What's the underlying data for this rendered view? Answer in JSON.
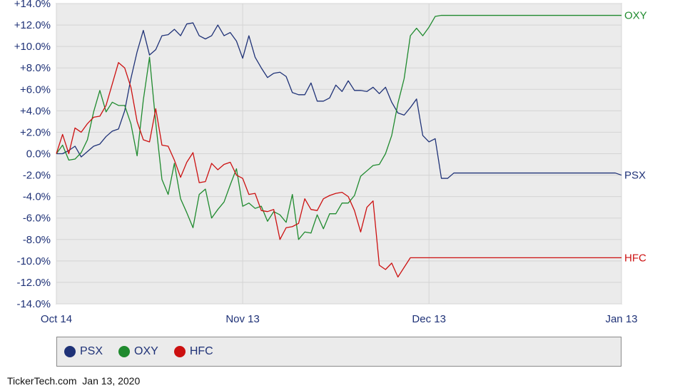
{
  "chart_data": {
    "type": "line",
    "xlabel": "",
    "ylabel": "",
    "ylim": [
      -14,
      14
    ],
    "y_ticks": [
      "+14.0%",
      "+12.0%",
      "+10.0%",
      "+8.0%",
      "+6.0%",
      "+4.0%",
      "+2.0%",
      "0.0%",
      "-2.0%",
      "-4.0%",
      "-6.0%",
      "-8.0%",
      "-10.0%",
      "-12.0%",
      "-14.0%"
    ],
    "y_tick_values": [
      14,
      12,
      10,
      8,
      6,
      4,
      2,
      0,
      -2,
      -4,
      -6,
      -8,
      -10,
      -12,
      -14
    ],
    "x_ticks": [
      "Oct 14",
      "Nov 13",
      "Dec 13",
      "Jan 13"
    ],
    "x_tick_days": [
      0,
      30,
      60,
      91
    ],
    "grid": true,
    "legend_position": "bottom",
    "series": [
      {
        "name": "PSX",
        "color": "#1f3277",
        "days": [
          0,
          1,
          2,
          3,
          4,
          5,
          6,
          7,
          8,
          9,
          10,
          11,
          12,
          13,
          14,
          15,
          16,
          17,
          18,
          19,
          20,
          21,
          22,
          23,
          24,
          25,
          26,
          27,
          28,
          29,
          30,
          31,
          32,
          33,
          34,
          35,
          36,
          37,
          38,
          39,
          40,
          41,
          42,
          43,
          44,
          45,
          46,
          47,
          48,
          49,
          50,
          51,
          52,
          53,
          54,
          55,
          56,
          57,
          58,
          59,
          60,
          61,
          62,
          63,
          64,
          65,
          66,
          67,
          68,
          69,
          70,
          71,
          72,
          73,
          74,
          75,
          76,
          77,
          78,
          79,
          80,
          81,
          82,
          83,
          84,
          85,
          86,
          87,
          88,
          89,
          90,
          91
        ],
        "values": [
          0.0,
          0.0,
          0.3,
          0.7,
          -0.3,
          0.2,
          0.7,
          0.9,
          1.6,
          2.1,
          2.3,
          4.0,
          7.0,
          9.5,
          11.5,
          9.2,
          9.7,
          11.0,
          11.1,
          11.6,
          11.0,
          12.1,
          12.2,
          11.0,
          10.7,
          11.0,
          12.0,
          11.0,
          11.3,
          10.5,
          8.9,
          11.0,
          9.0,
          8.0,
          7.1,
          7.5,
          7.6,
          7.2,
          5.7,
          5.5,
          5.5,
          6.6,
          4.9,
          4.9,
          5.2,
          6.4,
          5.8,
          6.8,
          5.9,
          5.9,
          5.8,
          6.2,
          5.6,
          6.2,
          4.8,
          3.8,
          3.6,
          4.3,
          5.1,
          1.7,
          1.1,
          1.4,
          -2.3,
          -2.3,
          -1.8,
          -1.8,
          -1.8,
          -1.8,
          -1.8,
          -1.8,
          -1.8,
          -1.8,
          -1.8,
          -1.8,
          -1.8,
          -1.8,
          -1.8,
          -1.8,
          -1.8,
          -1.8,
          -1.8,
          -1.8,
          -1.8,
          -1.8,
          -1.8,
          -1.8,
          -1.8,
          -1.8,
          -1.8,
          -1.8,
          -1.8,
          -2.0
        ]
      },
      {
        "name": "OXY",
        "color": "#1f8a2e",
        "days": [
          0,
          1,
          2,
          3,
          4,
          5,
          6,
          7,
          8,
          9,
          10,
          11,
          12,
          13,
          14,
          15,
          16,
          17,
          18,
          19,
          20,
          21,
          22,
          23,
          24,
          25,
          26,
          27,
          28,
          29,
          30,
          31,
          32,
          33,
          34,
          35,
          36,
          37,
          38,
          39,
          40,
          41,
          42,
          43,
          44,
          45,
          46,
          47,
          48,
          49,
          50,
          51,
          52,
          53,
          54,
          55,
          56,
          57,
          58,
          59,
          60,
          61,
          62,
          63,
          64,
          65,
          66,
          67,
          68,
          69,
          70,
          71,
          72,
          73,
          74,
          75,
          76,
          77,
          78,
          79,
          80,
          81,
          82,
          83,
          84,
          85,
          86,
          87,
          88,
          89,
          90,
          91
        ],
        "values": [
          0.0,
          0.8,
          -0.6,
          -0.5,
          0.1,
          1.3,
          3.9,
          5.9,
          3.9,
          4.8,
          4.5,
          4.5,
          2.8,
          -0.2,
          5.0,
          9.0,
          2.9,
          -2.4,
          -3.8,
          -0.9,
          -4.2,
          -5.5,
          -6.9,
          -3.8,
          -3.3,
          -6.0,
          -5.2,
          -4.5,
          -2.9,
          -1.4,
          -4.9,
          -4.6,
          -5.1,
          -4.9,
          -6.3,
          -5.4,
          -5.7,
          -6.4,
          -3.8,
          -8.0,
          -7.3,
          -7.4,
          -5.7,
          -7.0,
          -5.6,
          -5.6,
          -4.6,
          -4.6,
          -3.9,
          -2.1,
          -1.6,
          -1.1,
          -1.0,
          0.0,
          1.7,
          4.7,
          7.0,
          11.0,
          11.7,
          11.0,
          11.8,
          12.8,
          12.9,
          12.9,
          12.9,
          12.9,
          12.9,
          12.9,
          12.9,
          12.9,
          12.9,
          12.9,
          12.9,
          12.9,
          12.9,
          12.9,
          12.9,
          12.9,
          12.9,
          12.9,
          12.9,
          12.9,
          12.9,
          12.9,
          12.9,
          12.9,
          12.9,
          12.9,
          12.9,
          12.9,
          12.9,
          12.9
        ],
        "note_days_used": 62
      },
      {
        "name": "HFC",
        "color": "#cc1010",
        "days": [
          0,
          1,
          2,
          3,
          4,
          5,
          6,
          7,
          8,
          9,
          10,
          11,
          12,
          13,
          14,
          15,
          16,
          17,
          18,
          19,
          20,
          21,
          22,
          23,
          24,
          25,
          26,
          27,
          28,
          29,
          30,
          31,
          32,
          33,
          34,
          35,
          36,
          37,
          38,
          39,
          40,
          41,
          42,
          43,
          44,
          45,
          46,
          47,
          48,
          49,
          50,
          51,
          52,
          53,
          54,
          55,
          56,
          57,
          58,
          59,
          60,
          61,
          62,
          63,
          64,
          65,
          66,
          67,
          68,
          69,
          70,
          71,
          72,
          73,
          74,
          75,
          76,
          77,
          78,
          79,
          80,
          81,
          82,
          83,
          84,
          85,
          86,
          87,
          88,
          89,
          90,
          91
        ],
        "values": [
          0.0,
          1.8,
          0.0,
          2.4,
          2.0,
          2.8,
          3.4,
          3.5,
          4.5,
          6.5,
          8.5,
          8.0,
          6.2,
          3.0,
          1.3,
          1.1,
          4.2,
          0.8,
          0.7,
          -0.6,
          -2.2,
          -0.8,
          0.1,
          -2.7,
          -2.6,
          -0.9,
          -1.5,
          -1.0,
          -0.8,
          -2.0,
          -2.3,
          -3.8,
          -3.7,
          -5.3,
          -5.4,
          -5.2,
          -8.0,
          -6.9,
          -6.8,
          -6.5,
          -4.2,
          -5.2,
          -5.3,
          -4.2,
          -3.9,
          -3.7,
          -3.6,
          -4.0,
          -5.3,
          -7.3,
          -5.0,
          -4.4,
          -10.4,
          -10.8,
          -10.2,
          -11.5,
          -10.6,
          -9.7,
          -9.7,
          -9.7,
          -9.7,
          -9.7,
          -9.7,
          -9.7,
          -9.7,
          -9.7,
          -9.7,
          -9.7,
          -9.7,
          -9.7,
          -9.7,
          -9.7,
          -9.7,
          -9.7,
          -9.7,
          -9.7,
          -9.7,
          -9.7,
          -9.7,
          -9.7,
          -9.7,
          -9.7,
          -9.7,
          -9.7,
          -9.7,
          -9.7,
          -9.7,
          -9.7,
          -9.7,
          -9.7,
          -9.7,
          -9.7
        ]
      }
    ]
  },
  "legend": {
    "items": [
      {
        "label": "PSX",
        "color": "#1f3277"
      },
      {
        "label": "OXY",
        "color": "#1f8a2e"
      },
      {
        "label": "HFC",
        "color": "#cc1010"
      }
    ]
  },
  "footer": {
    "source": "TickerTech.com",
    "date": "Jan 13, 2020"
  }
}
